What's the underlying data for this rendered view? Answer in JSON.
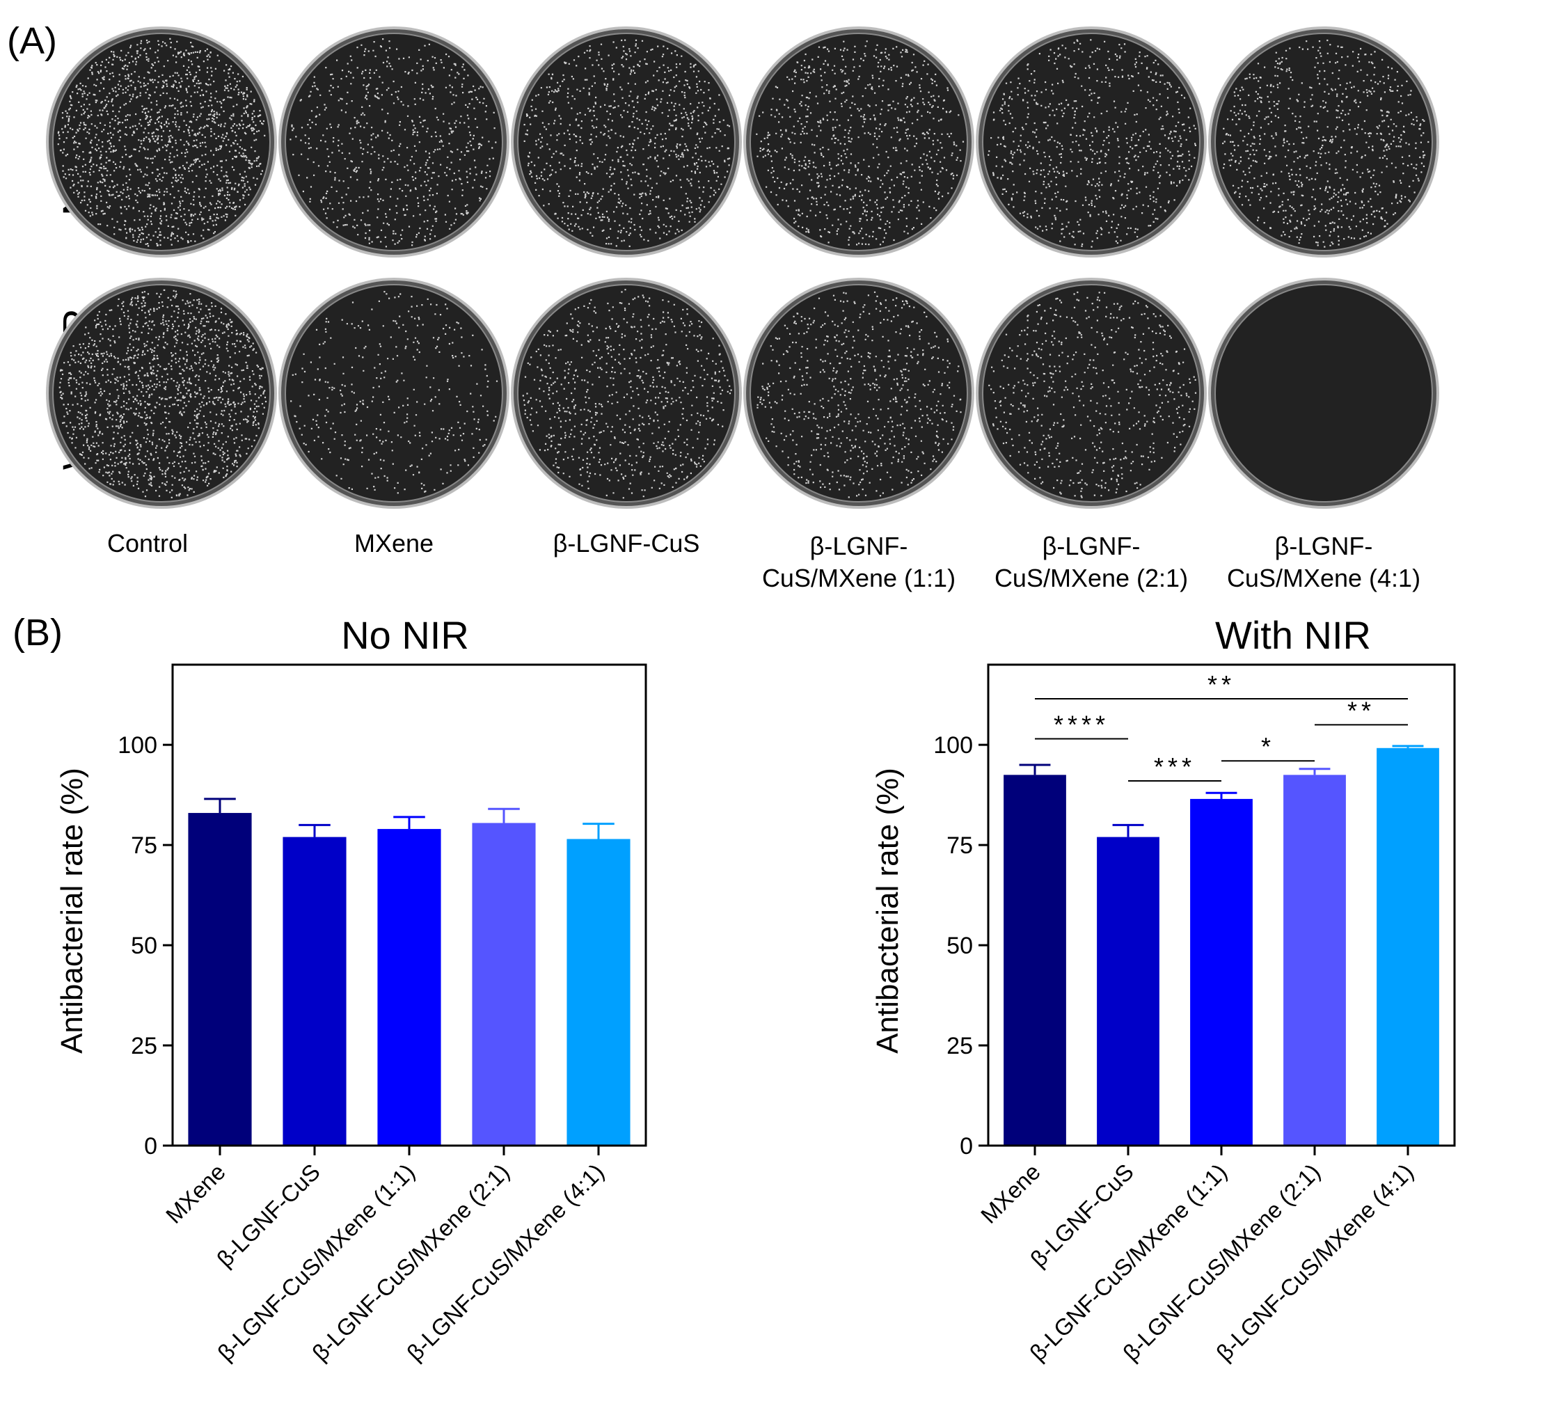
{
  "panel_a": {
    "label": "(A)",
    "row_labels": [
      "No NIR",
      "With NIR"
    ],
    "plates": [
      {
        "label_lines": [
          "Control"
        ]
      },
      {
        "label_lines": [
          "MXene"
        ]
      },
      {
        "label_lines": [
          "β-LGNF-CuS"
        ]
      },
      {
        "label_lines": [
          "β-LGNF-",
          "CuS/MXene (1:1)"
        ]
      },
      {
        "label_lines": [
          "β-LGNF-",
          "CuS/MXene (2:1)"
        ]
      },
      {
        "label_lines": [
          "β-LGNF-",
          "CuS/MXene (4:1)"
        ]
      }
    ],
    "colony_density": {
      "no_nir": [
        1.0,
        0.45,
        0.6,
        0.55,
        0.5,
        0.55
      ],
      "with_nir": [
        1.0,
        0.25,
        0.5,
        0.45,
        0.4,
        0.0
      ]
    }
  },
  "panel_b": {
    "label": "(B)"
  },
  "colors": {
    "bars": [
      "#00007a",
      "#0000c8",
      "#0000ff",
      "#5555ff",
      "#00a0ff"
    ],
    "plate_dark": "#222222",
    "colony": "#e8e8e8"
  },
  "chart_data": [
    {
      "type": "bar",
      "title": "No NIR",
      "ylabel": "Antibacterial rate (%)",
      "xlabel": "",
      "ylim": [
        0,
        120
      ],
      "yticks": [
        0,
        25,
        50,
        75,
        100
      ],
      "categories": [
        "MXene",
        "β-LGNF-CuS",
        "β-LGNF-CuS/MXene (1:1)",
        "β-LGNF-CuS/MXene (2:1)",
        "β-LGNF-CuS/MXene (4:1)"
      ],
      "values": [
        83,
        77,
        79,
        80.5,
        76.5
      ],
      "errors": [
        3.5,
        3,
        3,
        3.5,
        3.8
      ],
      "significance": []
    },
    {
      "type": "bar",
      "title": "With NIR",
      "ylabel": "Antibacterial rate (%)",
      "xlabel": "",
      "ylim": [
        0,
        120
      ],
      "yticks": [
        0,
        25,
        50,
        75,
        100
      ],
      "categories": [
        "MXene",
        "β-LGNF-CuS",
        "β-LGNF-CuS/MXene (1:1)",
        "β-LGNF-CuS/MXene (2:1)",
        "β-LGNF-CuS/MXene (4:1)"
      ],
      "values": [
        92.5,
        77,
        86.5,
        92.5,
        99.2
      ],
      "errors": [
        2.5,
        3,
        1.5,
        1.5,
        0.5
      ],
      "significance": [
        {
          "from": 0,
          "to": 1,
          "y": 101.5,
          "label": "****"
        },
        {
          "from": 1,
          "to": 2,
          "y": 91,
          "label": "***"
        },
        {
          "from": 2,
          "to": 3,
          "y": 96,
          "label": "*"
        },
        {
          "from": 3,
          "to": 4,
          "y": 105,
          "label": "**"
        },
        {
          "from": 0,
          "to": 4,
          "y": 111.5,
          "label": "**"
        }
      ]
    }
  ]
}
